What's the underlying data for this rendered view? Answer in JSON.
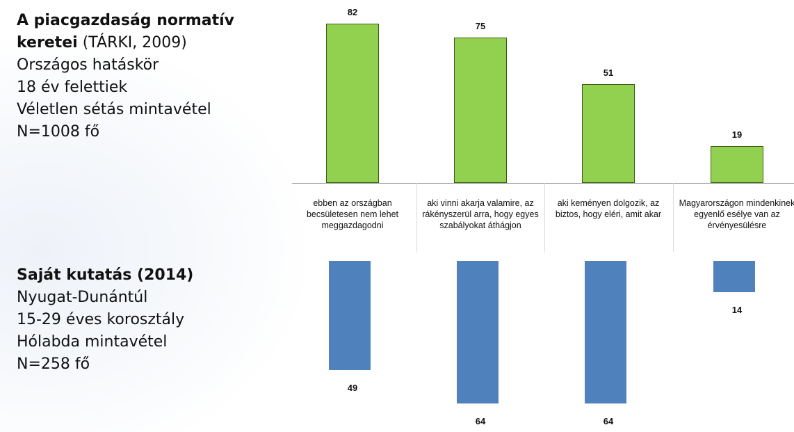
{
  "text_panels": [
    {
      "title": "A piacgazdaság normatív keretei",
      "source": "(TÁRKI, 2009)",
      "lines": [
        "Országos hatáskör",
        "18 év felettiek",
        "Véletlen sétás mintavétel",
        "N=1008 fő"
      ]
    },
    {
      "title": "Saját kutatás (2014)",
      "lines": [
        "Nyugat-Dunántúl",
        "15-29 éves korosztály",
        "Hólabda mintavétel",
        "N=258 fő"
      ]
    }
  ],
  "chart_data": [
    {
      "type": "bar",
      "color": "#92d050",
      "categories": [
        "ebben az országban becsületesen nem lehet meggazdagodni",
        "aki vinni akarja valamire, az rákényszerül arra, hogy egyes szabályokat áthágjon",
        "aki keményen dolgozik, az biztos, hogy eléri, amit akar",
        "Magyarországon mindenkinek egyenlő esélye van az érvényesülésre"
      ],
      "values": [
        82,
        75,
        51,
        19
      ]
    },
    {
      "type": "bar",
      "color": "#4f81bd",
      "values": [
        49,
        64,
        64,
        14
      ]
    }
  ]
}
